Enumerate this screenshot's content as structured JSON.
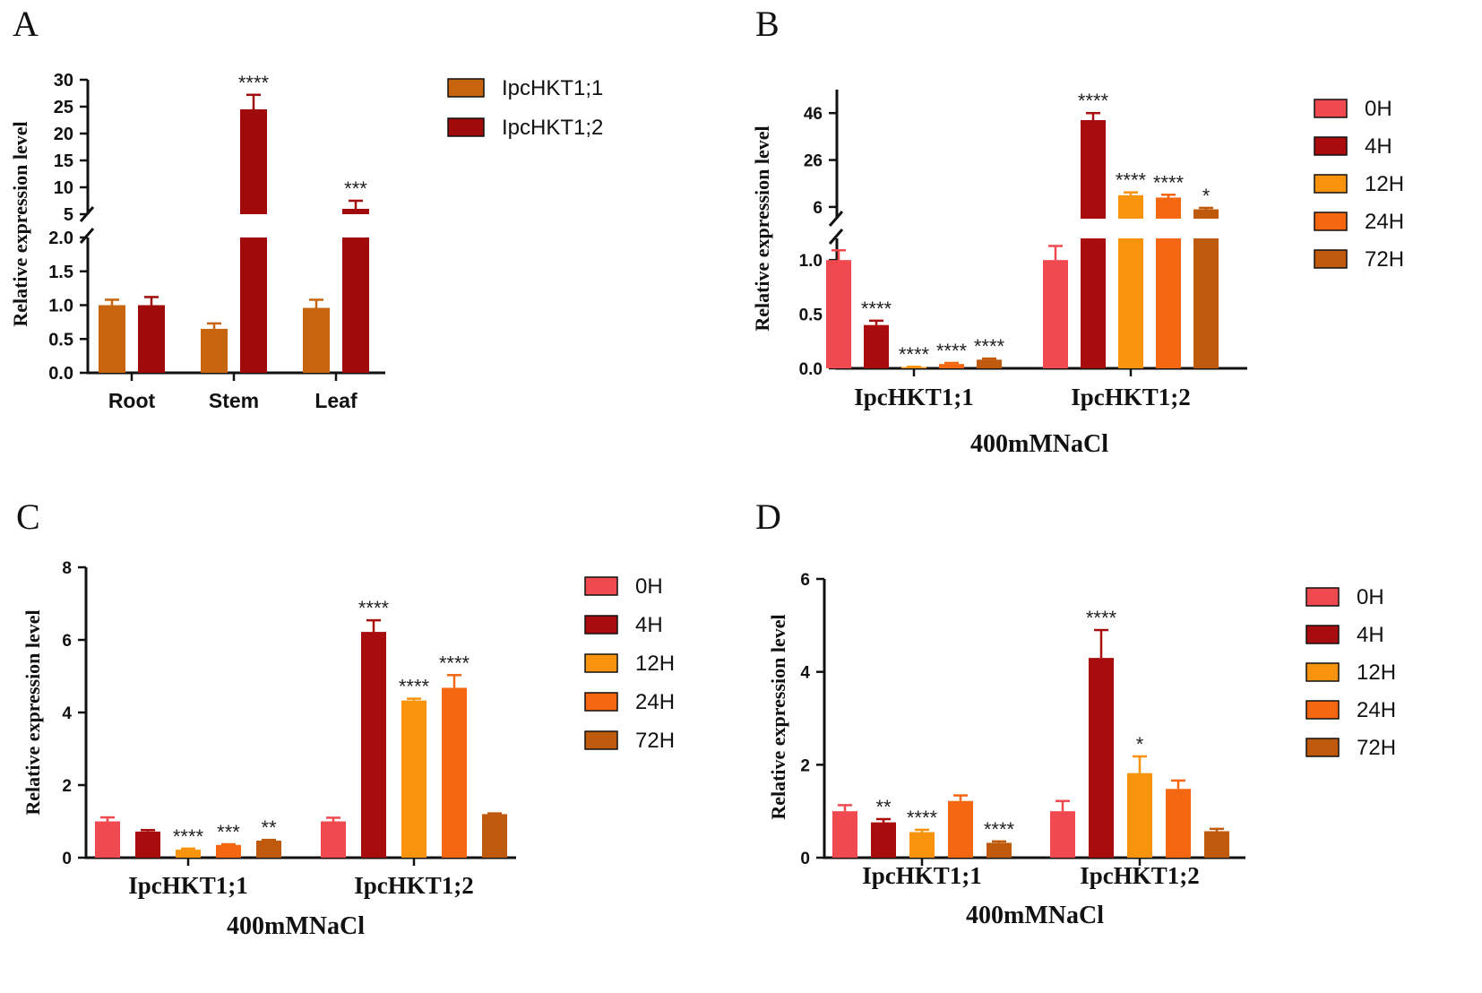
{
  "figure": {
    "panel_labels": [
      "A",
      "B",
      "C",
      "D"
    ]
  },
  "chart_data": [
    {
      "panel": "A",
      "type": "bar",
      "title": "",
      "xlabel": "",
      "ylabel": "Relative expression level",
      "categories": [
        "Root",
        "Stem",
        "Leaf"
      ],
      "series": [
        {
          "name": "IpcHKT1;1",
          "color": "#c8640e",
          "values": [
            1.0,
            0.65,
            0.96
          ],
          "errors": [
            0.08,
            0.08,
            0.12
          ]
        },
        {
          "name": "IpcHKT1;2",
          "color": "#a00a0a",
          "values": [
            1.0,
            24.5,
            6.0
          ],
          "errors": [
            0.12,
            2.7,
            1.5
          ]
        }
      ],
      "significance": [
        [
          "",
          ""
        ],
        [
          "",
          "****"
        ],
        [
          "",
          "***"
        ]
      ],
      "axis_break": {
        "lower_range": [
          0,
          2.0
        ],
        "upper_range": [
          5,
          30
        ]
      },
      "yticks_lower": [
        "0.0",
        "0.5",
        "1.0",
        "1.5",
        "2.0"
      ],
      "yticks_upper": [
        "5",
        "10",
        "15",
        "20",
        "25",
        "30"
      ],
      "legend_position": "right"
    },
    {
      "panel": "B",
      "type": "bar",
      "title": "",
      "xlabel": "400mMNaCl",
      "ylabel": "Relative expression level",
      "categories": [
        "IpcHKT1;1",
        "IpcHKT1;2"
      ],
      "series": [
        {
          "name": "0H",
          "color": "#f04a50",
          "values": [
            1.0,
            1.0
          ],
          "errors": [
            0.09,
            0.13
          ]
        },
        {
          "name": "4H",
          "color": "#a80c0c",
          "values": [
            0.4,
            43
          ],
          "errors": [
            0.04,
            3.0
          ]
        },
        {
          "name": "12H",
          "color": "#f7930d",
          "values": [
            0.01,
            11
          ],
          "errors": [
            0.005,
            1.2
          ]
        },
        {
          "name": "24H",
          "color": "#f46610",
          "values": [
            0.04,
            10
          ],
          "errors": [
            0.01,
            1.2
          ]
        },
        {
          "name": "72H",
          "color": "#bf5a0c",
          "values": [
            0.08,
            5
          ],
          "errors": [
            0.01,
            0.6
          ]
        }
      ],
      "significance": [
        [
          "",
          "****",
          "****",
          "****",
          "****"
        ],
        [
          "",
          "****",
          "****",
          "****",
          "*"
        ]
      ],
      "axis_break": {
        "lower_range": [
          0,
          1.2
        ],
        "upper_range": [
          1,
          56
        ]
      },
      "yticks_lower": [
        "0.0",
        "0.5",
        "1.0"
      ],
      "yticks_upper": [
        "6",
        "26",
        "46"
      ],
      "legend_position": "right"
    },
    {
      "panel": "C",
      "type": "bar",
      "title": "",
      "xlabel": "400mMNaCl",
      "ylabel": "Relative expression level",
      "categories": [
        "IpcHKT1;1",
        "IpcHKT1;2"
      ],
      "series": [
        {
          "name": "0H",
          "color": "#f04a50",
          "values": [
            1.0,
            1.0
          ],
          "errors": [
            0.11,
            0.1
          ]
        },
        {
          "name": "4H",
          "color": "#a80c0c",
          "values": [
            0.72,
            6.22
          ],
          "errors": [
            0.04,
            0.32
          ]
        },
        {
          "name": "12H",
          "color": "#f7930d",
          "values": [
            0.22,
            4.33
          ],
          "errors": [
            0.03,
            0.05
          ]
        },
        {
          "name": "24H",
          "color": "#f46610",
          "values": [
            0.35,
            4.68
          ],
          "errors": [
            0.02,
            0.35
          ]
        },
        {
          "name": "72H",
          "color": "#bf5a0c",
          "values": [
            0.47,
            1.2
          ],
          "errors": [
            0.02,
            0.02
          ]
        }
      ],
      "significance": [
        [
          "",
          "",
          "****",
          "***",
          "**"
        ],
        [
          "",
          "****",
          "****",
          "****",
          ""
        ]
      ],
      "ylim": [
        0,
        8
      ],
      "yticks": [
        "0",
        "2",
        "4",
        "6",
        "8"
      ],
      "legend_position": "right"
    },
    {
      "panel": "D",
      "type": "bar",
      "title": "",
      "xlabel": "400mMNaCl",
      "ylabel": "Relative expression level",
      "categories": [
        "IpcHKT1;1",
        "IpcHKT1;2"
      ],
      "series": [
        {
          "name": "0H",
          "color": "#f04a50",
          "values": [
            1.0,
            1.0
          ],
          "errors": [
            0.13,
            0.22
          ]
        },
        {
          "name": "4H",
          "color": "#a80c0c",
          "values": [
            0.76,
            4.3
          ],
          "errors": [
            0.07,
            0.6
          ]
        },
        {
          "name": "12H",
          "color": "#f7930d",
          "values": [
            0.55,
            1.82
          ],
          "errors": [
            0.05,
            0.36
          ]
        },
        {
          "name": "24H",
          "color": "#f46610",
          "values": [
            1.22,
            1.48
          ],
          "errors": [
            0.12,
            0.18
          ]
        },
        {
          "name": "72H",
          "color": "#bf5a0c",
          "values": [
            0.32,
            0.57
          ],
          "errors": [
            0.03,
            0.05
          ]
        }
      ],
      "significance": [
        [
          "",
          "**",
          "****",
          "",
          "****"
        ],
        [
          "",
          "****",
          "*",
          "",
          ""
        ]
      ],
      "ylim": [
        0,
        6
      ],
      "yticks": [
        "0",
        "2",
        "4",
        "6"
      ],
      "legend_position": "right"
    }
  ]
}
